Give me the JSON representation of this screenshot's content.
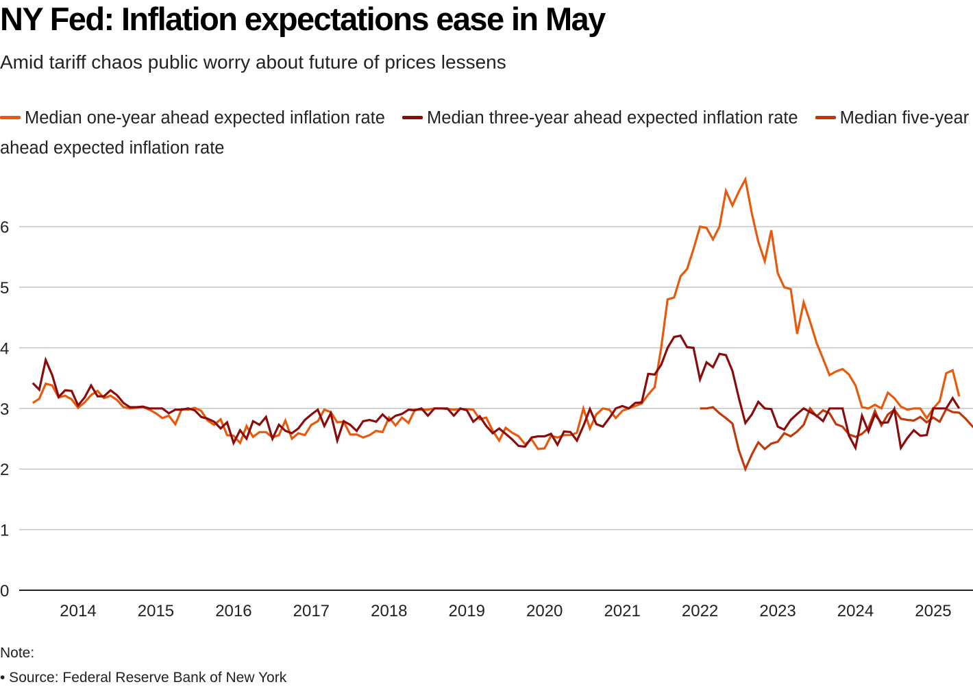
{
  "title": "NY Fed: Inflation expectations ease in May",
  "subtitle": "Amid tariff chaos public worry about future of prices lessens",
  "note_label": "Note:",
  "source": "• Source: Federal Reserve Bank of New York",
  "chart_data": {
    "type": "line",
    "title": "NY Fed: Inflation expectations ease in May",
    "subtitle": "Amid tariff chaos public worry about future of prices lessens",
    "xlabel": "",
    "ylabel": "",
    "ylim": [
      0,
      7
    ],
    "yticks": [
      0,
      1,
      2,
      3,
      4,
      5,
      6
    ],
    "ytick_labels": [
      "0",
      "1",
      "2",
      "3",
      "4",
      "5",
      "6"
    ],
    "xticks": [
      "2014",
      "2015",
      "2016",
      "2017",
      "2018",
      "2019",
      "2020",
      "2021",
      "2022",
      "2023",
      "2024",
      "2025"
    ],
    "x_start": "2013-06",
    "x_end": "2025-05",
    "frequency": "monthly",
    "grid": true,
    "legend_position": "top",
    "series": [
      {
        "name": "Median one-year ahead expected inflation rate",
        "color": "#E8590C",
        "start": "2013-06",
        "values": [
          3.09,
          3.16,
          3.41,
          3.38,
          3.18,
          3.21,
          3.15,
          3.01,
          3.1,
          3.22,
          3.29,
          3.17,
          3.21,
          3.14,
          3.02,
          3.0,
          3.01,
          3.02,
          2.98,
          2.92,
          2.84,
          2.88,
          2.74,
          2.99,
          2.98,
          3.01,
          2.96,
          2.8,
          2.73,
          2.82,
          2.56,
          2.55,
          2.43,
          2.71,
          2.53,
          2.61,
          2.61,
          2.52,
          2.56,
          2.8,
          2.5,
          2.59,
          2.56,
          2.73,
          2.79,
          2.98,
          2.94,
          2.77,
          2.78,
          2.57,
          2.57,
          2.52,
          2.56,
          2.63,
          2.61,
          2.85,
          2.72,
          2.85,
          2.76,
          2.98,
          2.98,
          2.98,
          3.0,
          3.0,
          2.99,
          2.98,
          2.99,
          2.99,
          2.98,
          2.82,
          2.85,
          2.63,
          2.47,
          2.68,
          2.6,
          2.54,
          2.41,
          2.49,
          2.33,
          2.34,
          2.55,
          2.52,
          2.56,
          2.56,
          2.6,
          3.0,
          2.67,
          2.9,
          3.0,
          2.98,
          2.84,
          2.96,
          3.0,
          3.04,
          3.08,
          3.23,
          3.35,
          4.0,
          4.8,
          4.83,
          5.18,
          5.3,
          5.63,
          6.0,
          5.98,
          5.79,
          6.0,
          6.59,
          6.35,
          6.58,
          6.78,
          6.22,
          5.75,
          5.43,
          5.94,
          5.23,
          5.0,
          4.97,
          4.23,
          4.75,
          4.43,
          4.08,
          3.82,
          3.55,
          3.61,
          3.65,
          3.56,
          3.38,
          3.02,
          3.0,
          3.06,
          3.0,
          3.26,
          3.17,
          3.03,
          2.98,
          3.0,
          3.0,
          2.84,
          3.0,
          3.12,
          3.58,
          3.63,
          3.2
        ]
      },
      {
        "name": "Median three-year ahead expected inflation rate",
        "color": "#8B0A0A",
        "start": "2013-06",
        "values": [
          3.42,
          3.31,
          3.8,
          3.55,
          3.19,
          3.3,
          3.29,
          3.05,
          3.18,
          3.38,
          3.2,
          3.2,
          3.3,
          3.22,
          3.09,
          3.02,
          3.02,
          3.03,
          3.0,
          3.0,
          3.0,
          2.92,
          2.98,
          2.98,
          3.0,
          2.97,
          2.86,
          2.83,
          2.78,
          2.67,
          2.77,
          2.43,
          2.64,
          2.5,
          2.79,
          2.73,
          2.86,
          2.5,
          2.73,
          2.63,
          2.59,
          2.67,
          2.81,
          2.9,
          2.98,
          2.71,
          2.92,
          2.47,
          2.79,
          2.73,
          2.63,
          2.79,
          2.81,
          2.78,
          2.9,
          2.8,
          2.88,
          2.91,
          2.98,
          2.97,
          3.0,
          2.88,
          3.0,
          3.0,
          3.0,
          2.88,
          3.0,
          2.97,
          2.78,
          2.87,
          2.71,
          2.59,
          2.67,
          2.58,
          2.49,
          2.38,
          2.37,
          2.52,
          2.54,
          2.54,
          2.58,
          2.4,
          2.62,
          2.61,
          2.47,
          2.71,
          2.99,
          2.74,
          2.7,
          2.84,
          3.0,
          3.04,
          3.0,
          3.09,
          3.1,
          3.57,
          3.56,
          3.72,
          4.0,
          4.18,
          4.2,
          4.01,
          4.0,
          3.48,
          3.76,
          3.68,
          3.9,
          3.88,
          3.62,
          3.17,
          2.76,
          2.9,
          3.11,
          3.0,
          2.99,
          2.7,
          2.65,
          2.81,
          2.91,
          3.0,
          2.94,
          2.88,
          2.79,
          3.0,
          3.0,
          3.0,
          2.55,
          2.35,
          2.88,
          2.62,
          2.9,
          2.76,
          2.77,
          2.99,
          2.35,
          2.51,
          2.64,
          2.55,
          2.56,
          3.0,
          3.0,
          3.0,
          3.17,
          3.0
        ]
      },
      {
        "name": "Median five-year ahead expected inflation rate",
        "color": "#C0390B",
        "start": "2022-01",
        "values": [
          3.0,
          3.0,
          3.02,
          2.92,
          2.84,
          2.75,
          2.31,
          2.0,
          2.24,
          2.44,
          2.33,
          2.42,
          2.45,
          2.59,
          2.54,
          2.62,
          2.73,
          3.0,
          2.87,
          2.97,
          2.92,
          2.74,
          2.7,
          2.57,
          2.53,
          2.58,
          2.68,
          2.96,
          2.72,
          2.9,
          2.98,
          2.83,
          2.81,
          2.8,
          2.86,
          2.77,
          2.85,
          2.78,
          2.99,
          2.94,
          2.93,
          2.83,
          2.71,
          2.61
        ]
      }
    ]
  }
}
